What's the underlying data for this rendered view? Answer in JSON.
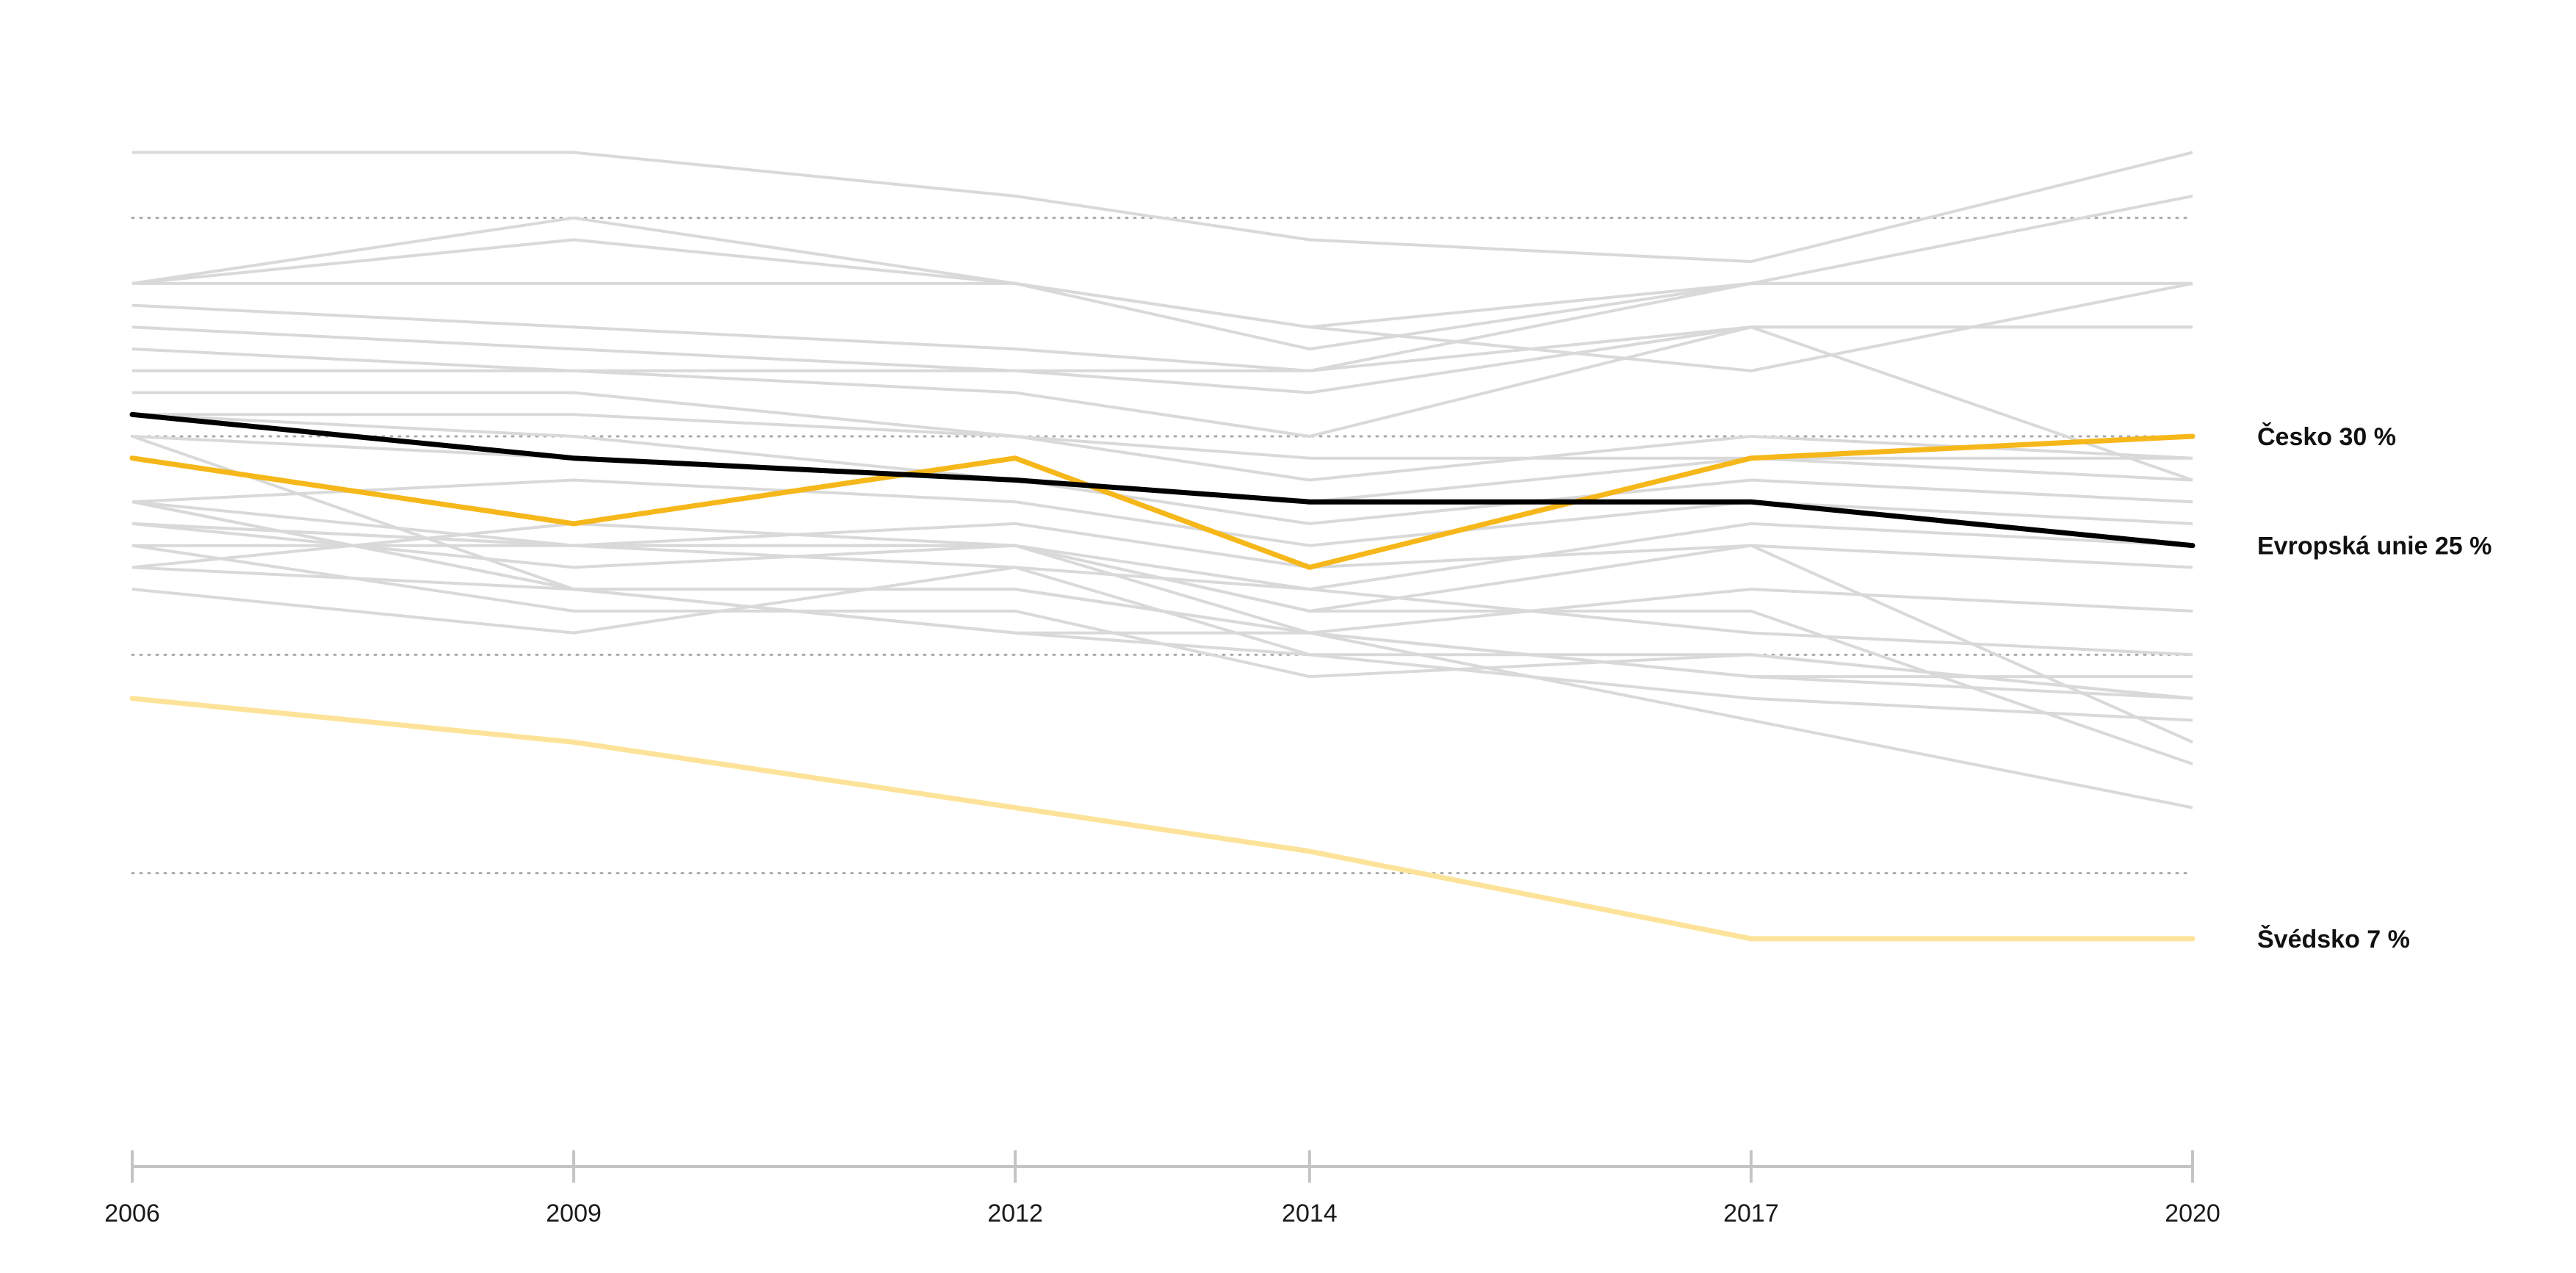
{
  "chart_data": {
    "type": "line",
    "title": "",
    "xlabel": "",
    "ylabel": "",
    "x": [
      "2006",
      "2009",
      "2012",
      "2014",
      "2017",
      "2020"
    ],
    "ylim": [
      0,
      45
    ],
    "grid": {
      "y": [
        10,
        20,
        30,
        40
      ],
      "style": "dotted"
    },
    "legend": "direct labels at line ends (right)",
    "background_series_color": "#d9d9d9",
    "background_series": [
      [
        43,
        43,
        41,
        39,
        38,
        43
      ],
      [
        37,
        40,
        37,
        35,
        33,
        37
      ],
      [
        37,
        39,
        37,
        35,
        37,
        41
      ],
      [
        37,
        37,
        37,
        34,
        37,
        37
      ],
      [
        36,
        35,
        34,
        33,
        37,
        37
      ],
      [
        35,
        34,
        33,
        33,
        35,
        35
      ],
      [
        34,
        33,
        33,
        32,
        35,
        35
      ],
      [
        33,
        33,
        32,
        30,
        35,
        28
      ],
      [
        32,
        32,
        30,
        28,
        30,
        29
      ],
      [
        31,
        31,
        30,
        29,
        29,
        29
      ],
      [
        30,
        29,
        28,
        27,
        29,
        28
      ],
      [
        31,
        30,
        28,
        26,
        28,
        27
      ],
      [
        27,
        28,
        27,
        25,
        27,
        26
      ],
      [
        26,
        25,
        25,
        23,
        26,
        25
      ],
      [
        25,
        25,
        26,
        24,
        25,
        24
      ],
      [
        27,
        23,
        21,
        21,
        23,
        22
      ],
      [
        27,
        23,
        21,
        20,
        20,
        18
      ],
      [
        30,
        23,
        23,
        21,
        19,
        19
      ],
      [
        26,
        25,
        24,
        23,
        21,
        20
      ],
      [
        24,
        23,
        23,
        21,
        19,
        18
      ],
      [
        25,
        22,
        22,
        19,
        20,
        18
      ],
      [
        23,
        21,
        24,
        20,
        18,
        17
      ],
      [
        24,
        26,
        25,
        22,
        22,
        15
      ],
      [
        26,
        24,
        25,
        21,
        17,
        13
      ],
      [
        27,
        25,
        25,
        22,
        25,
        16
      ]
    ],
    "series": [
      {
        "name": "Evropská unie",
        "label": "Evropská unie 25 %",
        "values": [
          31,
          29,
          28,
          27,
          27,
          25
        ],
        "color": "#000000"
      },
      {
        "name": "Česko",
        "label": "Česko 30 %",
        "values": [
          29,
          26,
          29,
          24,
          29,
          30
        ],
        "color": "#f6b71a"
      },
      {
        "name": "Švédsko",
        "label": "Švédsko 7 %",
        "values": [
          18,
          16,
          13,
          11,
          7,
          7
        ],
        "color": "#fde39a"
      }
    ]
  }
}
